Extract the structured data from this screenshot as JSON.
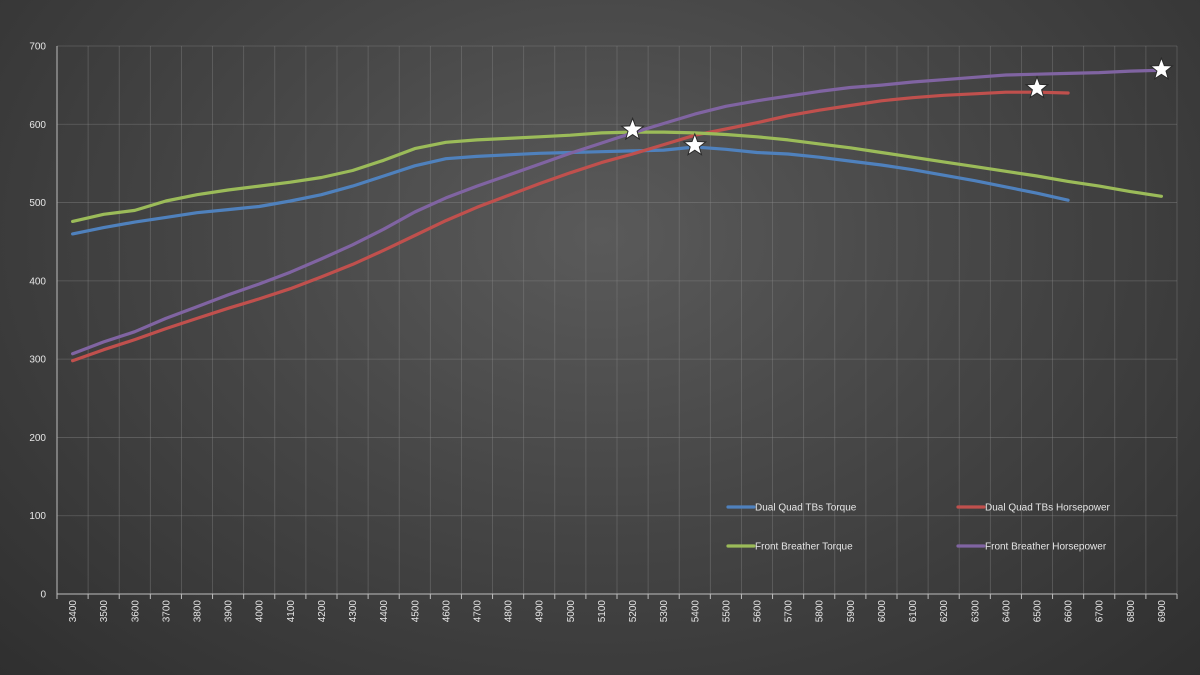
{
  "chart_data": {
    "type": "line",
    "x": [
      3400,
      3500,
      3600,
      3700,
      3800,
      3900,
      4000,
      4100,
      4200,
      4300,
      4400,
      4500,
      4600,
      4700,
      4800,
      4900,
      5000,
      5100,
      5200,
      5300,
      5400,
      5500,
      5600,
      5700,
      5800,
      5900,
      6000,
      6100,
      6200,
      6300,
      6400,
      6500,
      6600,
      6700,
      6800,
      6900
    ],
    "ylim": [
      0,
      700
    ],
    "yticks": [
      0,
      100,
      200,
      300,
      400,
      500,
      600,
      700
    ],
    "grid": true,
    "legend_position": "bottom-right",
    "series": [
      {
        "name": "Dual Quad TBs Torque",
        "color": "#4f81bd",
        "values": [
          460,
          468,
          475,
          481,
          487,
          491,
          495,
          502,
          510,
          521,
          534,
          547,
          556,
          559,
          561,
          563,
          564,
          565,
          566,
          567,
          571,
          568,
          564,
          562,
          558,
          553,
          548,
          542,
          535,
          528,
          520,
          512,
          503,
          null,
          null,
          null
        ]
      },
      {
        "name": "Dual Quad TBs Horsepower",
        "color": "#c0504d",
        "values": [
          298,
          312,
          325,
          339,
          352,
          365,
          377,
          390,
          405,
          421,
          439,
          458,
          477,
          494,
          509,
          524,
          538,
          551,
          562,
          574,
          586,
          594,
          602,
          611,
          618,
          624,
          630,
          634,
          637,
          639,
          641,
          641,
          640,
          null,
          null,
          null
        ]
      },
      {
        "name": "Front Breather Torque",
        "color": "#9bbb59",
        "values": [
          476,
          485,
          490,
          502,
          510,
          516,
          521,
          526,
          532,
          541,
          554,
          569,
          577,
          580,
          582,
          584,
          586,
          589,
          590,
          590,
          589,
          587,
          584,
          580,
          575,
          570,
          564,
          558,
          552,
          546,
          540,
          534,
          527,
          521,
          514,
          508
        ]
      },
      {
        "name": "Front Breather Horsepower",
        "color": "#8064a2",
        "values": [
          307,
          322,
          335,
          352,
          367,
          382,
          396,
          411,
          428,
          446,
          466,
          488,
          506,
          521,
          535,
          549,
          563,
          576,
          589,
          601,
          613,
          623,
          630,
          636,
          642,
          647,
          650,
          654,
          657,
          660,
          663,
          664,
          665,
          666,
          668,
          669
        ]
      }
    ],
    "markers": [
      {
        "shape": "star",
        "x": 5200,
        "y": 593
      },
      {
        "shape": "star",
        "x": 5400,
        "y": 573
      },
      {
        "shape": "star",
        "x": 6500,
        "y": 646
      },
      {
        "shape": "star",
        "x": 6900,
        "y": 670
      }
    ]
  }
}
